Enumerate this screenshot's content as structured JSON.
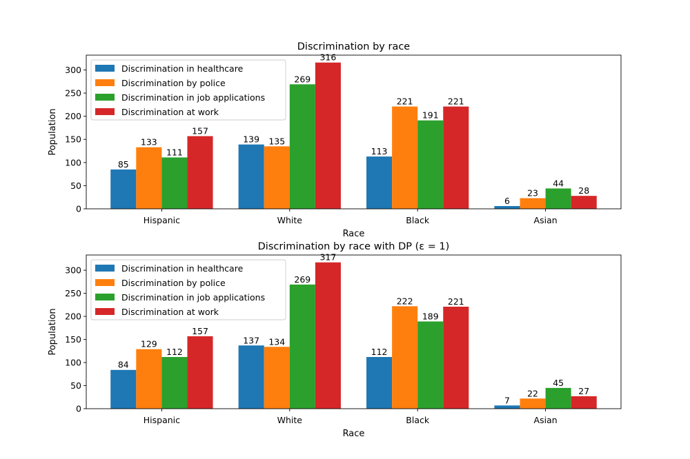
{
  "chart_data": [
    {
      "type": "bar",
      "title": "Discrimination by race",
      "xlabel": "Race",
      "ylabel": "Population",
      "categories": [
        "Hispanic",
        "White",
        "Black",
        "Asian"
      ],
      "ylim": [
        0,
        332
      ],
      "yticks": [
        0,
        50,
        100,
        150,
        200,
        250,
        300
      ],
      "legend_position": "upper-left",
      "grid": false,
      "series": [
        {
          "name": "Discrimination in healthcare",
          "color": "#1f77b4",
          "values": [
            85,
            139,
            113,
            6
          ]
        },
        {
          "name": "Discrimination by police",
          "color": "#ff7f0e",
          "values": [
            133,
            135,
            221,
            23
          ]
        },
        {
          "name": "Discrimination in job applications",
          "color": "#2ca02c",
          "values": [
            111,
            269,
            191,
            44
          ]
        },
        {
          "name": "Discrimination at work",
          "color": "#d62728",
          "values": [
            157,
            316,
            221,
            28
          ]
        }
      ]
    },
    {
      "type": "bar",
      "title": "Discrimination by race with DP (ε = 1)",
      "xlabel": "Race",
      "ylabel": "Population",
      "categories": [
        "Hispanic",
        "White",
        "Black",
        "Asian"
      ],
      "ylim": [
        0,
        333
      ],
      "yticks": [
        0,
        50,
        100,
        150,
        200,
        250,
        300
      ],
      "legend_position": "upper-left",
      "grid": false,
      "series": [
        {
          "name": "Discrimination in healthcare",
          "color": "#1f77b4",
          "values": [
            84,
            137,
            112,
            7
          ]
        },
        {
          "name": "Discrimination by police",
          "color": "#ff7f0e",
          "values": [
            129,
            134,
            222,
            22
          ]
        },
        {
          "name": "Discrimination in job applications",
          "color": "#2ca02c",
          "values": [
            112,
            269,
            189,
            45
          ]
        },
        {
          "name": "Discrimination at work",
          "color": "#d62728",
          "values": [
            157,
            317,
            221,
            27
          ]
        }
      ]
    }
  ]
}
